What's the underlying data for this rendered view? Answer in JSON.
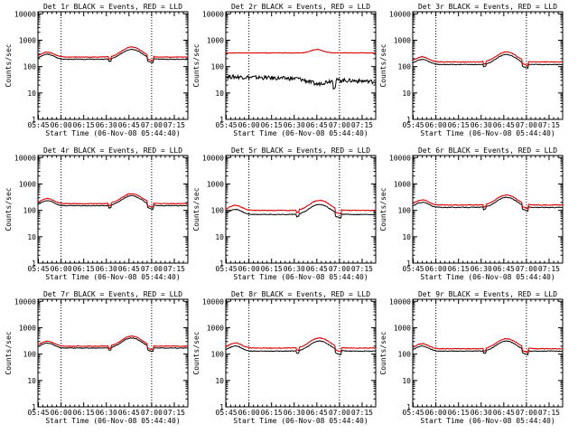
{
  "page": {
    "background": "#ffffff"
  },
  "colors": {
    "events": "#000000",
    "lld": "#e00000",
    "axes": "#000000"
  },
  "panel_layout": {
    "rows": 3,
    "cols": 3
  },
  "xlabel": "Start Time (06-Nov-08 05:44:40)",
  "ylabel": "Counts/sec",
  "x_tick_labels": [
    "05:45",
    "06:00",
    "06:15",
    "06:30",
    "06:45",
    "07:00",
    "07:15"
  ],
  "x_tick_hours": [
    5.75,
    6.0,
    6.25,
    6.5,
    6.75,
    7.0,
    7.25
  ],
  "x_range_hours": [
    5.7444,
    7.4
  ],
  "y_tick_labels": [
    "1",
    "10",
    "100",
    "1000",
    "10000"
  ],
  "y_range": [
    1,
    12000
  ],
  "y_scale": "log",
  "vertical_markers_hours": [
    6.0,
    7.0
  ],
  "chart_data": [
    {
      "type": "line",
      "title": "Det 1r BLACK = Events, RED = LLD",
      "scale": "log",
      "ylim": [
        1,
        12000
      ],
      "series": [
        {
          "name": "Events",
          "color": "#000000",
          "profile": "standard",
          "base": 190
        },
        {
          "name": "LLD",
          "color": "#e00000",
          "profile": "standard",
          "base": 230
        }
      ]
    },
    {
      "type": "line",
      "title": "Det 2r BLACK = Events, RED = LLD",
      "scale": "log",
      "ylim": [
        1,
        12000
      ],
      "series": [
        {
          "name": "Events",
          "color": "#000000",
          "profile": "noisy",
          "base": 30
        },
        {
          "name": "LLD",
          "color": "#e00000",
          "profile": "flat",
          "base": 330
        }
      ]
    },
    {
      "type": "line",
      "title": "Det 3r BLACK = Events, RED = LLD",
      "scale": "log",
      "ylim": [
        1,
        12000
      ],
      "series": [
        {
          "name": "Events",
          "color": "#000000",
          "profile": "standard",
          "base": 120
        },
        {
          "name": "LLD",
          "color": "#e00000",
          "profile": "standard",
          "base": 150
        }
      ]
    },
    {
      "type": "line",
      "title": "Det 4r BLACK = Events, RED = LLD",
      "scale": "log",
      "ylim": [
        1,
        12000
      ],
      "series": [
        {
          "name": "Events",
          "color": "#000000",
          "profile": "standard",
          "base": 150
        },
        {
          "name": "LLD",
          "color": "#e00000",
          "profile": "standard",
          "base": 180
        }
      ]
    },
    {
      "type": "line",
      "title": "Det 5r BLACK = Events, RED = LLD",
      "scale": "log",
      "ylim": [
        1,
        12000
      ],
      "series": [
        {
          "name": "Events",
          "color": "#000000",
          "profile": "standard",
          "base": 70
        },
        {
          "name": "LLD",
          "color": "#e00000",
          "profile": "standard",
          "base": 100
        }
      ]
    },
    {
      "type": "line",
      "title": "Det 6r BLACK = Events, RED = LLD",
      "scale": "log",
      "ylim": [
        1,
        12000
      ],
      "series": [
        {
          "name": "Events",
          "color": "#000000",
          "profile": "standard",
          "base": 130
        },
        {
          "name": "LLD",
          "color": "#e00000",
          "profile": "standard",
          "base": 160
        }
      ]
    },
    {
      "type": "line",
      "title": "Det 7r BLACK = Events, RED = LLD",
      "scale": "log",
      "ylim": [
        1,
        12000
      ],
      "series": [
        {
          "name": "Events",
          "color": "#000000",
          "profile": "standard",
          "base": 170
        },
        {
          "name": "LLD",
          "color": "#e00000",
          "profile": "standard",
          "base": 200
        }
      ]
    },
    {
      "type": "line",
      "title": "Det 8r BLACK = Events, RED = LLD",
      "scale": "log",
      "ylim": [
        1,
        12000
      ],
      "series": [
        {
          "name": "Events",
          "color": "#000000",
          "profile": "standard",
          "base": 130
        },
        {
          "name": "LLD",
          "color": "#e00000",
          "profile": "standard",
          "base": 170
        }
      ]
    },
    {
      "type": "line",
      "title": "Det 9r BLACK = Events, RED = LLD",
      "scale": "log",
      "ylim": [
        1,
        12000
      ],
      "series": [
        {
          "name": "Events",
          "color": "#000000",
          "profile": "standard",
          "base": 130
        },
        {
          "name": "LLD",
          "color": "#e00000",
          "profile": "standard",
          "base": 160
        }
      ]
    }
  ]
}
